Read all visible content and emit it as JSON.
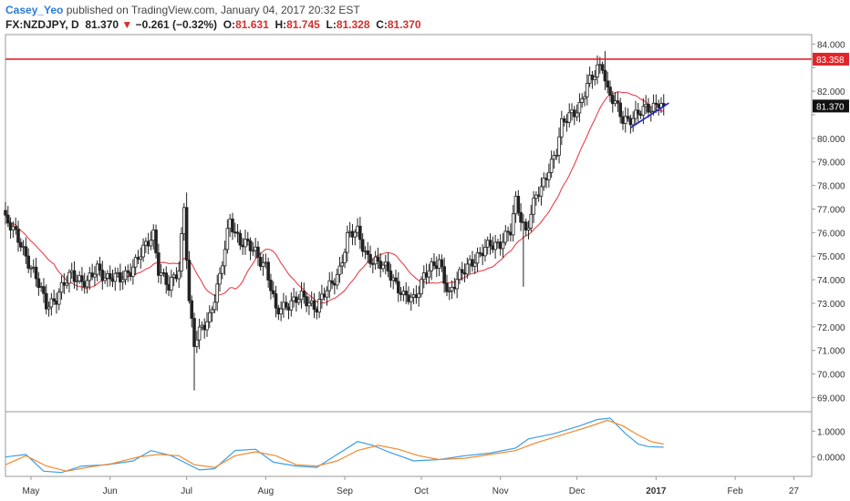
{
  "header": {
    "author": "Casey_Yeo",
    "publish_text": " published on TradingView.com, January 04, 2017 20:32 EST",
    "symbol": "FX:NZDJPY, D",
    "last": "81.370",
    "change_arrow": "▼",
    "change": "−0.261 (−0.32%)",
    "open_label": "O:",
    "open": "81.631",
    "high_label": "H:",
    "high": "81.745",
    "low_label": "L:",
    "low": "81.328",
    "close_label": "C:",
    "close": "81.370"
  },
  "colors": {
    "up_body": "#ffffff",
    "down_body": "#222222",
    "wick": "#222222",
    "ma": "#e8404a",
    "resistance": "#e0262a",
    "trendline": "#1f1fcc",
    "osc_fast": "#3d9ee8",
    "osc_slow": "#f08a2e",
    "price_badge": "#111111",
    "resistance_badge": "#e0262a"
  },
  "chart_data": {
    "type": "candlestick",
    "symbol": "FX:NZDJPY",
    "timeframe": "D",
    "y_ticks": [
      "84.000",
      "83.000",
      "82.000",
      "81.000",
      "80.000",
      "79.000",
      "78.000",
      "77.000",
      "76.000",
      "75.000",
      "74.000",
      "73.000",
      "72.000",
      "71.000",
      "70.000",
      "69.000"
    ],
    "ylim": [
      68.4,
      84.4
    ],
    "x_labels": [
      "May",
      "Jun",
      "Jul",
      "Aug",
      "Sep",
      "Oct",
      "Nov",
      "Dec",
      "2017",
      "Feb",
      "27"
    ],
    "x_label_days": [
      0,
      31,
      61,
      92,
      123,
      153,
      184,
      214,
      245,
      276,
      299
    ],
    "x_domain_days": [
      -10,
      306
    ],
    "resistance": {
      "value": 83.358,
      "label": "83.358"
    },
    "last_price": {
      "value": 81.37,
      "label": "81.370"
    },
    "trendline": {
      "from": {
        "day": 235,
        "value": 80.45
      },
      "to": {
        "day": 250,
        "value": 81.5
      }
    },
    "anchors": [
      [
        -10,
        76.5
      ],
      [
        -4,
        75.6
      ],
      [
        0,
        74.5
      ],
      [
        6,
        73.0
      ],
      [
        10,
        73.2
      ],
      [
        16,
        74.3
      ],
      [
        22,
        73.8
      ],
      [
        26,
        74.5
      ],
      [
        30,
        74.1
      ],
      [
        35,
        74.0
      ],
      [
        40,
        74.6
      ],
      [
        44,
        75.2
      ],
      [
        48,
        76.0
      ],
      [
        50,
        74.5
      ],
      [
        54,
        73.6
      ],
      [
        58,
        74.5
      ],
      [
        60,
        77.2
      ],
      [
        62,
        73.0
      ],
      [
        64,
        71.2
      ],
      [
        67,
        72.0
      ],
      [
        70,
        72.5
      ],
      [
        74,
        74.0
      ],
      [
        78,
        76.6
      ],
      [
        82,
        75.6
      ],
      [
        88,
        75.2
      ],
      [
        92,
        74.6
      ],
      [
        96,
        72.6
      ],
      [
        100,
        73.0
      ],
      [
        106,
        73.2
      ],
      [
        112,
        72.9
      ],
      [
        118,
        73.8
      ],
      [
        121,
        74.5
      ],
      [
        124,
        75.8
      ],
      [
        128,
        76.0
      ],
      [
        132,
        75.0
      ],
      [
        136,
        74.6
      ],
      [
        140,
        74.5
      ],
      [
        146,
        73.2
      ],
      [
        150,
        73.2
      ],
      [
        154,
        74.2
      ],
      [
        158,
        74.5
      ],
      [
        160,
        74.8
      ],
      [
        164,
        73.4
      ],
      [
        168,
        74.1
      ],
      [
        172,
        74.8
      ],
      [
        176,
        75.0
      ],
      [
        180,
        75.5
      ],
      [
        184,
        75.6
      ],
      [
        188,
        76.0
      ],
      [
        190,
        77.3
      ],
      [
        194,
        76.1
      ],
      [
        198,
        77.5
      ],
      [
        200,
        77.8
      ],
      [
        203,
        78.8
      ],
      [
        206,
        79.5
      ],
      [
        208,
        80.5
      ],
      [
        212,
        81.1
      ],
      [
        215,
        81.4
      ],
      [
        218,
        82.2
      ],
      [
        220,
        82.5
      ],
      [
        222,
        83.0
      ],
      [
        224,
        83.2
      ],
      [
        226,
        82.0
      ],
      [
        228,
        81.6
      ],
      [
        230,
        81.2
      ],
      [
        232,
        80.8
      ],
      [
        235,
        80.9
      ],
      [
        238,
        81.0
      ],
      [
        241,
        81.2
      ],
      [
        244,
        81.4
      ],
      [
        246,
        81.6
      ],
      [
        248,
        81.37
      ]
    ],
    "ma_period": 20,
    "oscillator": {
      "y_ticks": [
        "1.0000",
        "0.0000"
      ],
      "ylim": [
        -0.75,
        1.75
      ],
      "fast": [
        [
          -10,
          0.0
        ],
        [
          -2,
          0.1
        ],
        [
          5,
          -0.55
        ],
        [
          12,
          -0.6
        ],
        [
          20,
          -0.35
        ],
        [
          30,
          -0.3
        ],
        [
          40,
          -0.15
        ],
        [
          47,
          0.25
        ],
        [
          55,
          0.05
        ],
        [
          60,
          -0.2
        ],
        [
          66,
          -0.5
        ],
        [
          72,
          -0.45
        ],
        [
          80,
          0.25
        ],
        [
          88,
          0.3
        ],
        [
          95,
          -0.2
        ],
        [
          104,
          -0.35
        ],
        [
          112,
          -0.4
        ],
        [
          120,
          0.1
        ],
        [
          128,
          0.6
        ],
        [
          134,
          0.45
        ],
        [
          140,
          0.2
        ],
        [
          150,
          -0.15
        ],
        [
          160,
          -0.1
        ],
        [
          170,
          0.05
        ],
        [
          180,
          0.15
        ],
        [
          190,
          0.35
        ],
        [
          195,
          0.7
        ],
        [
          205,
          0.9
        ],
        [
          215,
          1.2
        ],
        [
          222,
          1.45
        ],
        [
          227,
          1.5
        ],
        [
          233,
          0.9
        ],
        [
          238,
          0.5
        ],
        [
          242,
          0.4
        ],
        [
          248,
          0.38
        ]
      ],
      "slow": [
        [
          -10,
          -0.3
        ],
        [
          -2,
          0.05
        ],
        [
          6,
          -0.35
        ],
        [
          14,
          -0.55
        ],
        [
          22,
          -0.4
        ],
        [
          32,
          -0.25
        ],
        [
          42,
          0.0
        ],
        [
          50,
          0.1
        ],
        [
          58,
          0.05
        ],
        [
          64,
          -0.3
        ],
        [
          72,
          -0.4
        ],
        [
          80,
          0.05
        ],
        [
          88,
          0.2
        ],
        [
          96,
          0.05
        ],
        [
          104,
          -0.3
        ],
        [
          112,
          -0.35
        ],
        [
          120,
          -0.15
        ],
        [
          128,
          0.25
        ],
        [
          136,
          0.45
        ],
        [
          144,
          0.3
        ],
        [
          152,
          0.05
        ],
        [
          160,
          -0.1
        ],
        [
          170,
          -0.05
        ],
        [
          180,
          0.1
        ],
        [
          190,
          0.25
        ],
        [
          198,
          0.55
        ],
        [
          208,
          0.85
        ],
        [
          218,
          1.15
        ],
        [
          226,
          1.42
        ],
        [
          232,
          1.2
        ],
        [
          238,
          0.85
        ],
        [
          243,
          0.6
        ],
        [
          248,
          0.5
        ]
      ]
    }
  }
}
